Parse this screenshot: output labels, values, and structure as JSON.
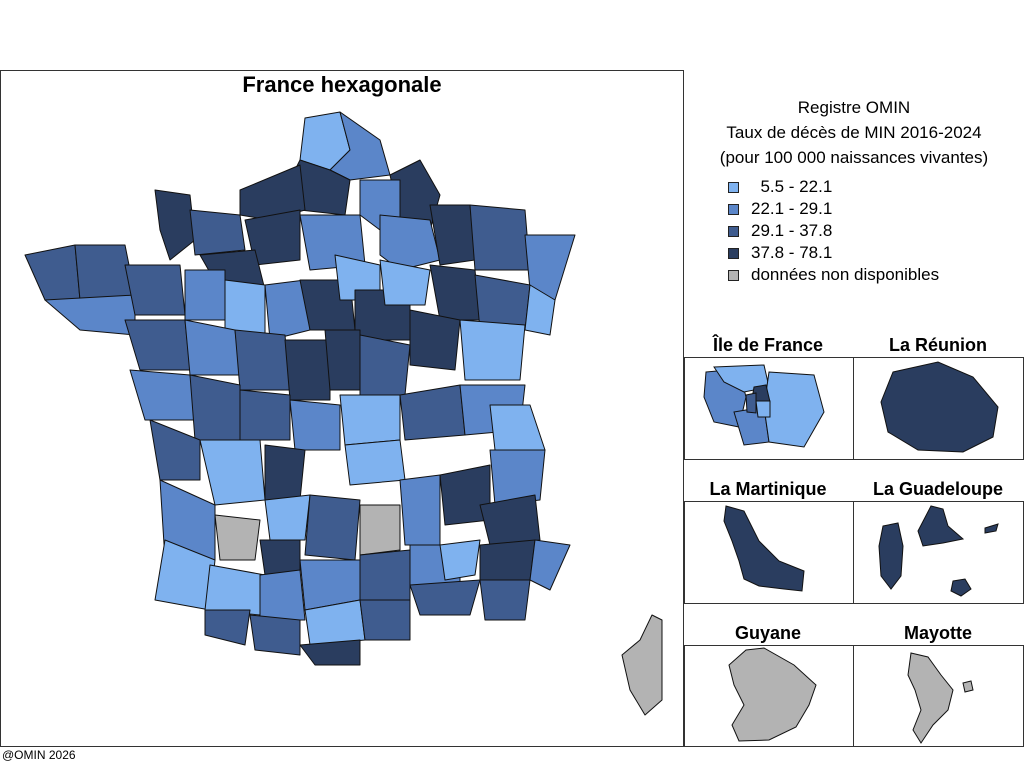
{
  "main": {
    "title": "France hexagonale"
  },
  "legend": {
    "line1": "Registre OMIN",
    "line2": "Taux de décès de MIN 2016-2024",
    "line3": "(pour 100 000 naissances vivantes)",
    "items": [
      {
        "label": "  5.5 - 22.1",
        "color": "#7fb2ef"
      },
      {
        "label": "22.1 - 29.1",
        "color": "#5b86c9"
      },
      {
        "label": "29.1 - 37.8",
        "color": "#3f5c8f"
      },
      {
        "label": "37.8 - 78.1",
        "color": "#2a3d5f"
      },
      {
        "label": "données non disponibles",
        "color": "#b3b3b3"
      }
    ]
  },
  "insets": [
    {
      "title": "Île de France"
    },
    {
      "title": "La Réunion"
    },
    {
      "title": "La Martinique"
    },
    {
      "title": "La Guadeloupe"
    },
    {
      "title": "Guyane"
    },
    {
      "title": "Mayotte"
    }
  ],
  "footer": {
    "credit": "@OMIN 2026"
  }
}
